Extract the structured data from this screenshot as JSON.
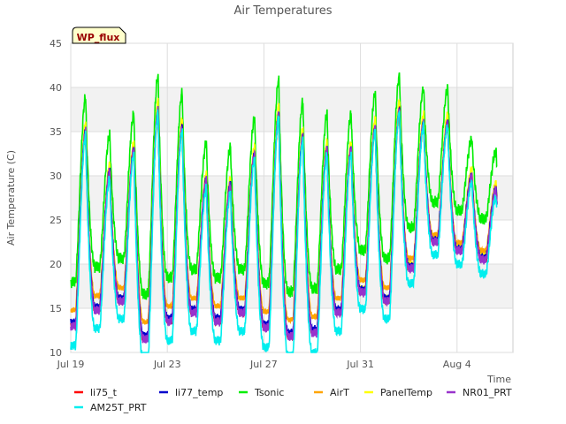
{
  "chart_data": {
    "type": "line",
    "title": "Air Temperatures",
    "xlabel": "Time",
    "ylabel": "Air Temperature (C)",
    "ylim": [
      10,
      45
    ],
    "yticks": [
      10,
      15,
      20,
      25,
      30,
      35,
      40,
      45
    ],
    "x_start": "Jul 19",
    "x_end": "Aug 6",
    "xticks": [
      {
        "label": "Jul 19",
        "day": 0
      },
      {
        "label": "Jul 23",
        "day": 4
      },
      {
        "label": "Jul 27",
        "day": 8
      },
      {
        "label": "Jul 31",
        "day": 12
      },
      {
        "label": "Aug 4",
        "day": 16
      }
    ],
    "grid": true,
    "banded_background": true,
    "site_label": "WP_flux",
    "legend_position": "bottom",
    "daily": {
      "day": [
        0,
        1,
        2,
        3,
        4,
        5,
        6,
        7,
        8,
        9,
        10,
        11,
        12,
        13,
        14,
        15,
        16,
        17
      ],
      "min": [
        13.0,
        14.8,
        15.8,
        11.5,
        13.5,
        14.5,
        13.5,
        14.5,
        12.8,
        11.8,
        12.2,
        14.5,
        16.8,
        15.8,
        19.5,
        22.5,
        21.5,
        20.5
      ],
      "max": [
        35.0,
        30.5,
        33.0,
        37.5,
        35.5,
        29.5,
        29.0,
        32.5,
        37.0,
        34.5,
        33.0,
        33.0,
        35.5,
        37.5,
        36.0,
        36.0,
        30.0,
        28.5
      ]
    },
    "series": [
      {
        "name": "li75_t",
        "color": "#ff0000"
      },
      {
        "name": "li77_temp",
        "color": "#0000cc"
      },
      {
        "name": "Tsonic",
        "color": "#00ee00"
      },
      {
        "name": "AirT",
        "color": "#ffa500"
      },
      {
        "name": "PanelTemp",
        "color": "#ffff00"
      },
      {
        "name": "NR01_PRT",
        "color": "#9933cc"
      },
      {
        "name": "AM25T_PRT",
        "color": "#00eeee"
      }
    ]
  }
}
